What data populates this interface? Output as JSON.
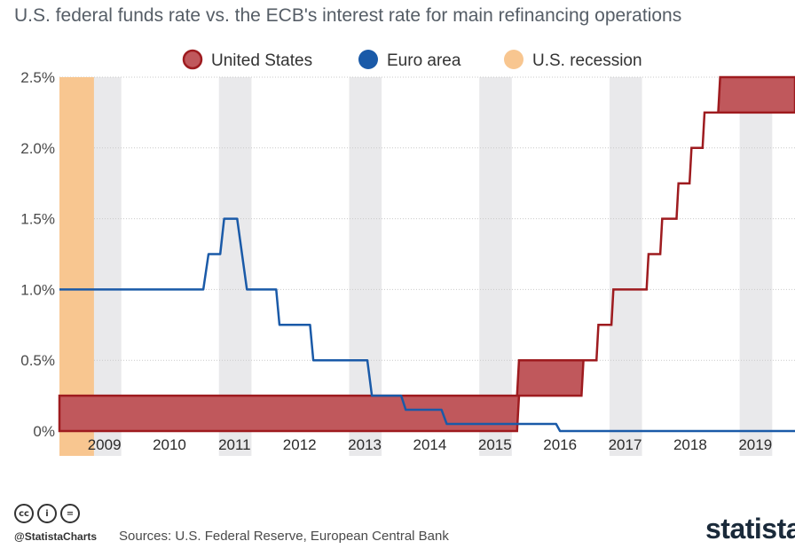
{
  "chart_data": {
    "type": "line",
    "title": "U.S. federal funds rate vs. the ECB's interest rate for main refinancing operations",
    "legend": [
      {
        "name": "United States",
        "color": "#c0585c",
        "stroke": "#9e1b1f"
      },
      {
        "name": "Euro area",
        "color": "#1a5aa8"
      },
      {
        "name": "U.S. recession",
        "color": "#f8c690"
      }
    ],
    "x_range": [
      2008.55,
      2019.85
    ],
    "ylim": [
      0,
      2.5
    ],
    "y_ticks": [
      {
        "value": 0,
        "label": "0%"
      },
      {
        "value": 0.5,
        "label": "0.5%"
      },
      {
        "value": 1.0,
        "label": "1.0%"
      },
      {
        "value": 1.5,
        "label": "1.5%"
      },
      {
        "value": 2.0,
        "label": "2.0%"
      },
      {
        "value": 2.5,
        "label": "2.5%"
      }
    ],
    "x_ticks": [
      {
        "year": 2009,
        "label": "2009"
      },
      {
        "year": 2010,
        "label": "2010"
      },
      {
        "year": 2011,
        "label": "2011"
      },
      {
        "year": 2012,
        "label": "2012"
      },
      {
        "year": 2013,
        "label": "2013"
      },
      {
        "year": 2014,
        "label": "2014"
      },
      {
        "year": 2015,
        "label": "2015"
      },
      {
        "year": 2016,
        "label": "2016"
      },
      {
        "year": 2017,
        "label": "2017"
      },
      {
        "year": 2018,
        "label": "2018"
      },
      {
        "year": 2019,
        "label": "2019"
      }
    ],
    "shaded_half_years": [
      2009,
      2011,
      2013,
      2015,
      2017,
      2019
    ],
    "recession": {
      "start": 2008.55,
      "end": 2009.08
    },
    "us_target_range": {
      "dates": [
        2008.55,
        2015.58,
        2015.61,
        2016.57,
        2016.6,
        2016.8,
        2016.83,
        2017.03,
        2017.06,
        2017.57,
        2017.6,
        2017.78,
        2017.81,
        2018.03,
        2018.06,
        2018.23,
        2018.26,
        2018.43,
        2018.46,
        2018.67,
        2018.7,
        2019.85
      ],
      "lower": [
        0,
        0,
        0.25,
        0.25,
        0.5,
        0.5,
        0.75,
        0.75,
        1.0,
        1.0,
        1.25,
        1.25,
        1.5,
        1.5,
        1.75,
        1.75,
        2.0,
        2.0,
        2.25,
        2.25,
        2.25,
        2.25
      ],
      "upper": [
        0.25,
        0.25,
        0.5,
        0.5,
        0.5,
        0.5,
        0.75,
        0.75,
        1.0,
        1.0,
        1.25,
        1.25,
        1.5,
        1.5,
        1.75,
        1.75,
        2.0,
        2.0,
        2.25,
        2.25,
        2.5,
        2.5
      ]
    },
    "euro_area": {
      "dates": [
        2008.55,
        2010.76,
        2010.84,
        2011.02,
        2011.08,
        2011.28,
        2011.43,
        2011.88,
        2011.93,
        2012.4,
        2012.45,
        2013.28,
        2013.35,
        2013.8,
        2013.87,
        2014.42,
        2014.5,
        2014.68,
        2014.73,
        2016.18,
        2016.24,
        2019.85
      ],
      "values": [
        1.0,
        1.0,
        1.25,
        1.25,
        1.5,
        1.5,
        1.0,
        1.0,
        0.75,
        0.75,
        0.5,
        0.5,
        0.25,
        0.25,
        0.15,
        0.15,
        0.05,
        0.05,
        0.05,
        0.05,
        0,
        0
      ]
    }
  },
  "footer": {
    "license_icons": [
      "cc",
      "i",
      "="
    ],
    "handle": "@StatistaCharts",
    "source": "Sources: U.S. Federal Reserve, European Central Bank",
    "brand": "statista"
  }
}
